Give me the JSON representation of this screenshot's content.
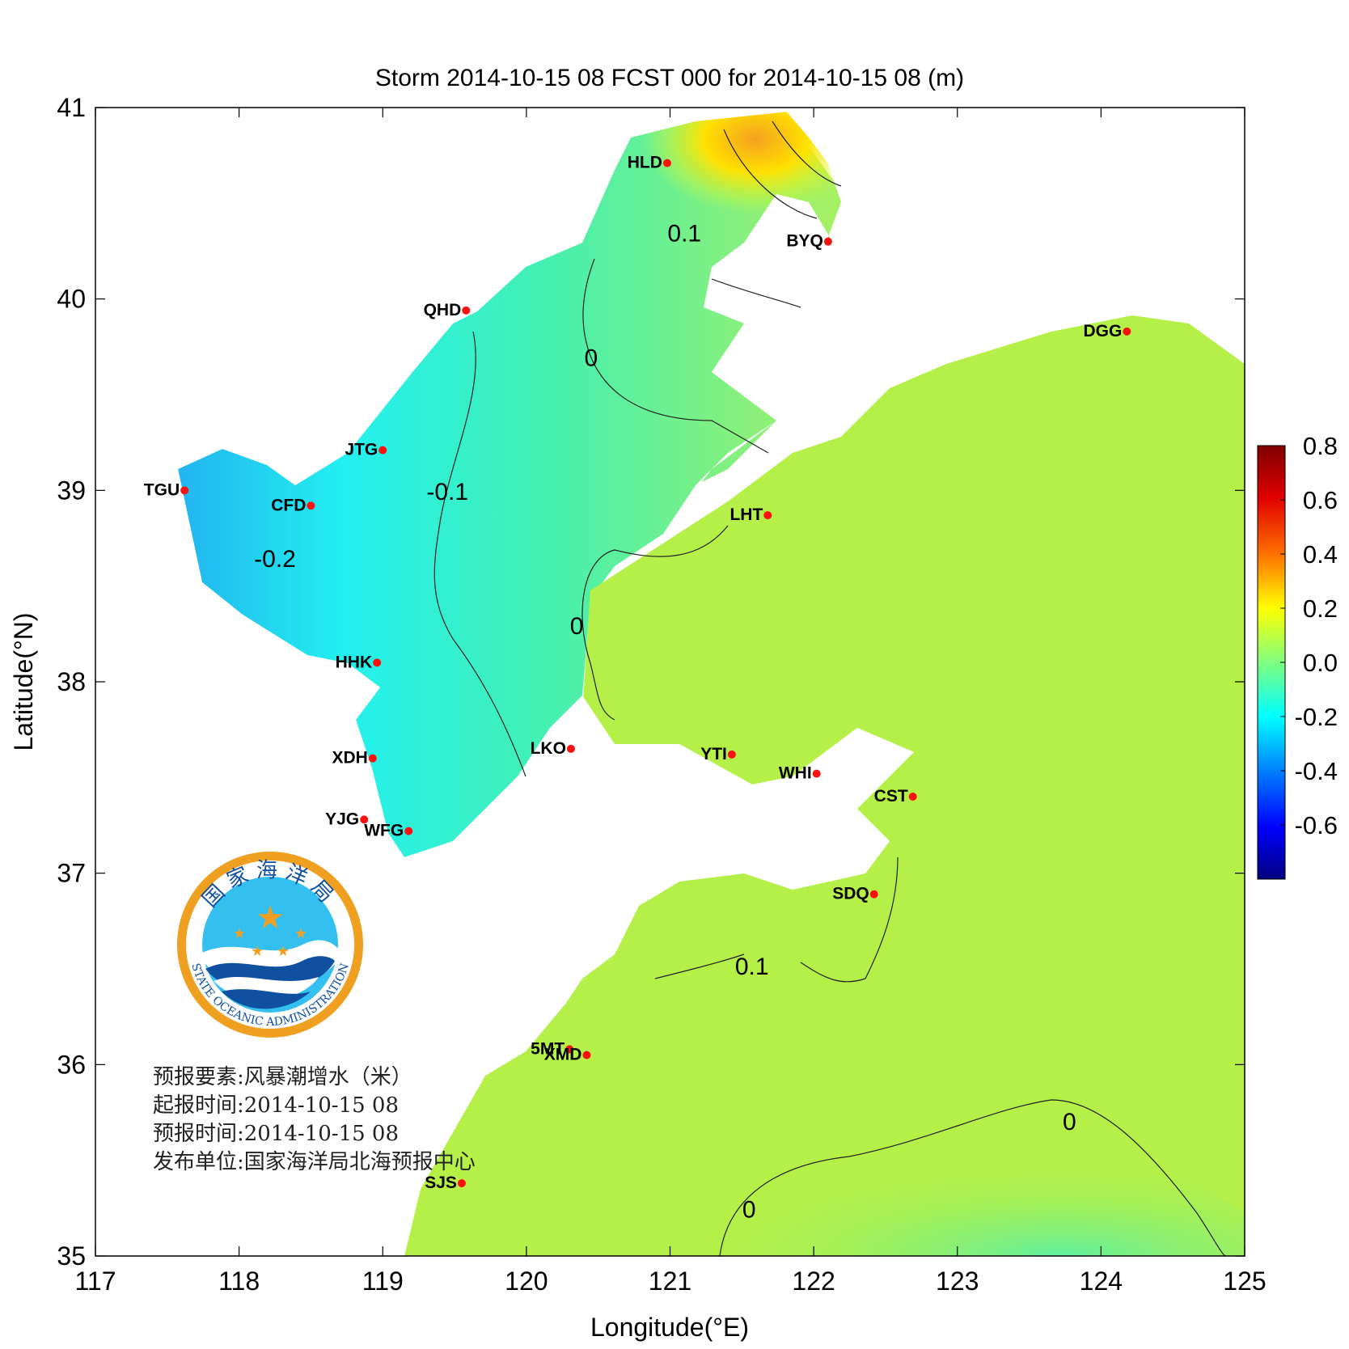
{
  "title": "Storm 2014-10-15 08 FCST 000 for 2014-10-15 08 (m)",
  "axes": {
    "xlabel": "Longitude(°E)",
    "ylabel": "Latitude(°N)",
    "xlim": [
      117,
      125
    ],
    "ylim": [
      35,
      41
    ],
    "xticks": [
      "117",
      "118",
      "119",
      "120",
      "121",
      "122",
      "123",
      "124",
      "125"
    ],
    "yticks": [
      "35",
      "36",
      "37",
      "38",
      "39",
      "40",
      "41"
    ]
  },
  "colorbar": {
    "min": -0.8,
    "max": 0.8,
    "ticks": [
      "0.8",
      "0.6",
      "0.4",
      "0.2",
      "0.0",
      "-0.2",
      "-0.4",
      "-0.6"
    ],
    "colors": [
      "#7f0000",
      "#ff0000",
      "#ff8000",
      "#ffff00",
      "#80ff80",
      "#00ffff",
      "#0080ff",
      "#0000ff",
      "#00007f"
    ]
  },
  "stations": [
    {
      "code": "HLD",
      "lon": 120.98,
      "lat": 40.71
    },
    {
      "code": "BYQ",
      "lon": 122.1,
      "lat": 40.3
    },
    {
      "code": "QHD",
      "lon": 119.58,
      "lat": 39.94
    },
    {
      "code": "DGG",
      "lon": 124.18,
      "lat": 39.83
    },
    {
      "code": "JTG",
      "lon": 119.0,
      "lat": 39.21
    },
    {
      "code": "TGU",
      "lon": 117.62,
      "lat": 39.0
    },
    {
      "code": "CFD",
      "lon": 118.5,
      "lat": 38.92
    },
    {
      "code": "LHT",
      "lon": 121.68,
      "lat": 38.87
    },
    {
      "code": "HHK",
      "lon": 118.96,
      "lat": 38.1
    },
    {
      "code": "XDH",
      "lon": 118.93,
      "lat": 37.6
    },
    {
      "code": "LKO",
      "lon": 120.31,
      "lat": 37.65
    },
    {
      "code": "YTI",
      "lon": 121.43,
      "lat": 37.62
    },
    {
      "code": "WHI",
      "lon": 122.02,
      "lat": 37.52
    },
    {
      "code": "CST",
      "lon": 122.69,
      "lat": 37.4
    },
    {
      "code": "YJG",
      "lon": 118.87,
      "lat": 37.28
    },
    {
      "code": "WFG",
      "lon": 119.18,
      "lat": 37.22
    },
    {
      "code": "SDQ",
      "lon": 122.42,
      "lat": 36.89
    },
    {
      "code": "5MT",
      "lon": 120.3,
      "lat": 36.08
    },
    {
      "code": "XMD",
      "lon": 120.42,
      "lat": 36.05
    },
    {
      "code": "SJS",
      "lon": 119.55,
      "lat": 35.38
    }
  ],
  "contour_labels": [
    {
      "text": "0.1",
      "lon": 121.1,
      "lat": 40.3
    },
    {
      "text": "0",
      "lon": 120.45,
      "lat": 39.65
    },
    {
      "text": "-0.1",
      "lon": 119.45,
      "lat": 38.95
    },
    {
      "text": "-0.2",
      "lon": 118.25,
      "lat": 38.6
    },
    {
      "text": "0",
      "lon": 120.35,
      "lat": 38.25
    },
    {
      "text": "0.1",
      "lon": 121.57,
      "lat": 36.47
    },
    {
      "text": "0",
      "lon": 123.78,
      "lat": 35.66
    },
    {
      "text": "0",
      "lon": 121.55,
      "lat": 35.2
    }
  ],
  "logo": {
    "chinese": "国家海洋局",
    "english": "STATE OCEANIC ADMINISTRATION"
  },
  "info": [
    "预报要素:风暴潮增水（米）",
    "起报时间:2014-10-15 08",
    "预报时间:2014-10-15 08",
    "发布单位:国家海洋局北海预报中心"
  ]
}
